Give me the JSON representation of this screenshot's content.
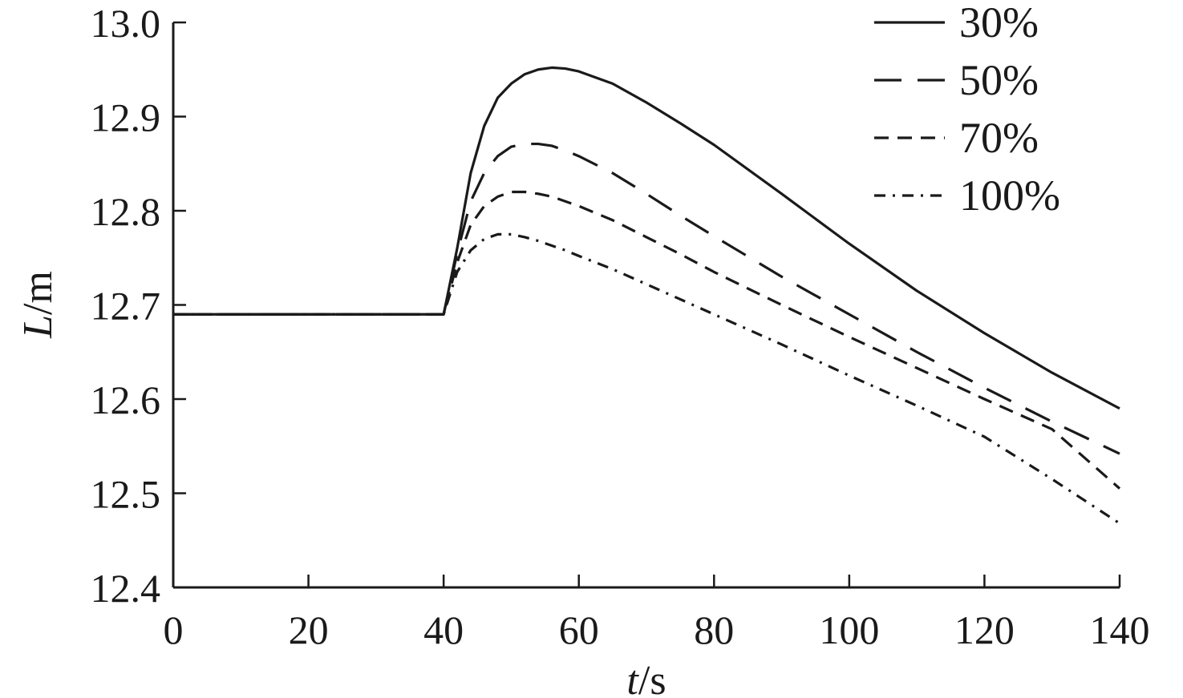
{
  "chart_data": {
    "type": "line",
    "xlabel_var": "t",
    "xlabel_unit": "/s",
    "ylabel_var": "L",
    "ylabel_unit": "/m",
    "xlim": [
      0,
      140
    ],
    "ylim": [
      12.4,
      13.0
    ],
    "x_ticks": [
      "0",
      "20",
      "40",
      "60",
      "80",
      "100",
      "120",
      "140"
    ],
    "y_ticks": [
      "12.4",
      "12.5",
      "12.6",
      "12.7",
      "12.8",
      "12.9",
      "13.0"
    ],
    "grid": false,
    "legend_position": "top-right",
    "line_color": "#1a1a1a",
    "series": [
      {
        "name": "30%",
        "line_style": "solid",
        "x": [
          0,
          10,
          20,
          30,
          40,
          42,
          44,
          46,
          48,
          50,
          52,
          54,
          56,
          58,
          60,
          65,
          70,
          75,
          80,
          90,
          100,
          110,
          120,
          130,
          140
        ],
        "y": [
          12.69,
          12.69,
          12.69,
          12.69,
          12.69,
          12.76,
          12.84,
          12.89,
          12.92,
          12.935,
          12.945,
          12.95,
          12.952,
          12.951,
          12.948,
          12.935,
          12.915,
          12.893,
          12.87,
          12.818,
          12.765,
          12.715,
          12.67,
          12.628,
          12.59
        ]
      },
      {
        "name": "50%",
        "line_style": "long-dash",
        "x": [
          0,
          10,
          20,
          30,
          40,
          42,
          44,
          46,
          48,
          50,
          52,
          54,
          56,
          58,
          60,
          65,
          70,
          75,
          80,
          90,
          100,
          110,
          120,
          130,
          140
        ],
        "y": [
          12.69,
          12.69,
          12.69,
          12.69,
          12.69,
          12.755,
          12.81,
          12.84,
          12.858,
          12.868,
          12.871,
          12.871,
          12.869,
          12.864,
          12.858,
          12.84,
          12.818,
          12.795,
          12.773,
          12.73,
          12.69,
          12.65,
          12.612,
          12.576,
          12.542
        ]
      },
      {
        "name": "70%",
        "line_style": "short-dash",
        "x": [
          0,
          10,
          20,
          30,
          40,
          42,
          44,
          46,
          48,
          50,
          52,
          54,
          56,
          58,
          60,
          65,
          70,
          75,
          80,
          90,
          100,
          110,
          120,
          130,
          140
        ],
        "y": [
          12.69,
          12.69,
          12.69,
          12.69,
          12.69,
          12.745,
          12.785,
          12.805,
          12.815,
          12.82,
          12.82,
          12.818,
          12.815,
          12.81,
          12.805,
          12.79,
          12.772,
          12.754,
          12.735,
          12.7,
          12.666,
          12.633,
          12.6,
          12.568,
          12.505
        ]
      },
      {
        "name": "100%",
        "line_style": "dash-dot",
        "x": [
          0,
          10,
          20,
          30,
          40,
          42,
          44,
          46,
          48,
          50,
          52,
          54,
          56,
          58,
          60,
          65,
          70,
          75,
          80,
          90,
          100,
          110,
          120,
          130,
          140
        ],
        "y": [
          12.69,
          12.69,
          12.69,
          12.69,
          12.69,
          12.735,
          12.758,
          12.77,
          12.775,
          12.775,
          12.772,
          12.768,
          12.763,
          12.758,
          12.752,
          12.738,
          12.722,
          12.706,
          12.69,
          12.658,
          12.625,
          12.593,
          12.56,
          12.515,
          12.468
        ]
      }
    ]
  }
}
